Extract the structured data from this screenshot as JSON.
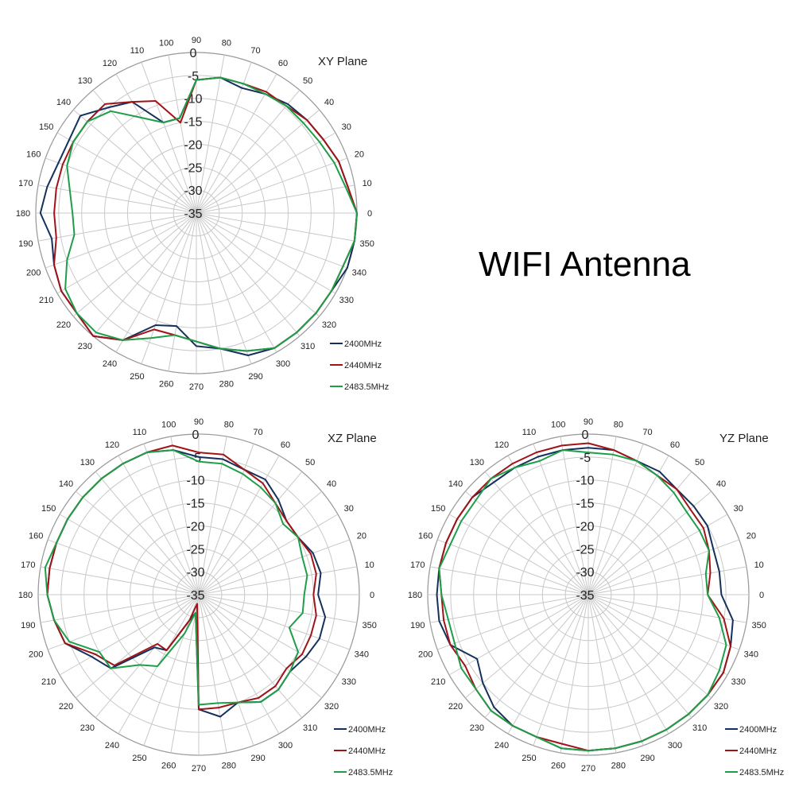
{
  "heading": "WIFI Antenna",
  "chart_data": [
    {
      "type": "polar-line",
      "title": "XY Plane",
      "r_ticks": [
        0,
        -5,
        -10,
        -15,
        -20,
        -25,
        -30,
        -35
      ],
      "r_range": [
        -35,
        0
      ],
      "angle_ticks": [
        0,
        10,
        20,
        30,
        40,
        50,
        60,
        70,
        80,
        90,
        100,
        110,
        120,
        130,
        140,
        150,
        160,
        170,
        180,
        190,
        200,
        210,
        220,
        230,
        240,
        250,
        260,
        270,
        280,
        290,
        300,
        310,
        320,
        330,
        340,
        350
      ],
      "legend": "bottom-right",
      "series": [
        {
          "name": "2400MHz",
          "color": "#14305c",
          "angles": [
            0,
            10,
            20,
            30,
            40,
            50,
            60,
            70,
            80,
            90,
            100,
            110,
            120,
            130,
            140,
            150,
            160,
            170,
            180,
            190,
            200,
            210,
            220,
            230,
            240,
            250,
            260,
            270,
            280,
            290,
            300,
            310,
            320,
            330,
            340,
            350
          ],
          "values": [
            0,
            -1.5,
            -2,
            -3,
            -3.5,
            -4,
            -5,
            -6,
            -5,
            -6,
            -14,
            -14,
            -7,
            -5,
            -2,
            -3,
            -3,
            -2,
            -1,
            -3,
            -2,
            -1,
            -1,
            0,
            -3,
            -9,
            -10,
            -6,
            -5,
            -2,
            -1,
            -1,
            -1,
            -1,
            0,
            0
          ]
        },
        {
          "name": "2440MHz",
          "color": "#a01418",
          "angles": [
            0,
            10,
            20,
            30,
            40,
            50,
            60,
            70,
            80,
            90,
            100,
            110,
            120,
            130,
            140,
            150,
            160,
            170,
            180,
            190,
            200,
            210,
            220,
            230,
            240,
            250,
            260,
            270,
            280,
            290,
            300,
            310,
            320,
            330,
            340,
            350
          ],
          "values": [
            0,
            -1.5,
            -2,
            -3,
            -3.5,
            -4.5,
            -4.5,
            -5,
            -5,
            -6,
            -15,
            -9,
            -7,
            -4,
            -4,
            -4,
            -4,
            -4,
            -4,
            -4,
            -2,
            -1,
            -1,
            0,
            -3,
            -8,
            -8,
            -7,
            -5,
            -3,
            -1,
            -1,
            -1,
            -1,
            -1,
            0
          ]
        },
        {
          "name": "2483.5MHz",
          "color": "#1e9e48",
          "angles": [
            0,
            10,
            20,
            30,
            40,
            50,
            60,
            70,
            80,
            90,
            100,
            110,
            120,
            130,
            140,
            150,
            160,
            170,
            180,
            190,
            200,
            210,
            220,
            230,
            240,
            250,
            260,
            270,
            280,
            290,
            300,
            310,
            320,
            330,
            340,
            350
          ],
          "values": [
            0,
            -2,
            -3,
            -4,
            -4.5,
            -4.5,
            -5,
            -5,
            -5,
            -6,
            -14,
            -14,
            -11,
            -6,
            -4,
            -4,
            -5,
            -7,
            -8,
            -8,
            -5,
            -2,
            -1,
            -1,
            -3,
            -6,
            -8,
            -7,
            -5,
            -3,
            -1,
            -1,
            -1,
            -1,
            -1,
            0
          ]
        }
      ]
    },
    {
      "type": "polar-line",
      "title": "XZ Plane",
      "r_ticks": [
        0,
        -5,
        -10,
        -15,
        -20,
        -25,
        -30,
        -35
      ],
      "r_range": [
        -35,
        0
      ],
      "angle_ticks": [
        0,
        10,
        20,
        30,
        40,
        50,
        60,
        70,
        80,
        90,
        100,
        110,
        120,
        130,
        140,
        150,
        160,
        170,
        180,
        190,
        200,
        210,
        220,
        230,
        240,
        250,
        260,
        270,
        280,
        290,
        300,
        310,
        320,
        330,
        340,
        350
      ],
      "legend": "bottom-right",
      "series": [
        {
          "name": "2400MHz",
          "color": "#14305c",
          "angles": [
            0,
            10,
            20,
            30,
            40,
            50,
            60,
            70,
            80,
            90,
            100,
            110,
            120,
            130,
            140,
            150,
            160,
            170,
            180,
            190,
            200,
            210,
            220,
            230,
            240,
            250,
            260,
            270,
            280,
            290,
            300,
            310,
            320,
            330,
            340,
            350
          ],
          "values": [
            -9,
            -8,
            -8.5,
            -10,
            -10,
            -8,
            -6,
            -6,
            -5,
            -5,
            -3,
            -2,
            -2,
            -2,
            -2,
            -2,
            -2,
            -2,
            -2,
            -3,
            -4,
            -8,
            -10,
            -20,
            -21,
            -29,
            -31,
            -10,
            -8,
            -10,
            -8,
            -8,
            -9,
            -8,
            -7,
            -7
          ]
        },
        {
          "name": "2440MHz",
          "color": "#a01418",
          "angles": [
            0,
            10,
            20,
            30,
            40,
            50,
            60,
            70,
            80,
            90,
            100,
            110,
            120,
            130,
            140,
            150,
            160,
            170,
            180,
            190,
            200,
            210,
            220,
            230,
            240,
            250,
            260,
            270,
            280,
            290,
            300,
            310,
            320,
            330,
            340,
            350
          ],
          "values": [
            -10,
            -9,
            -9,
            -10,
            -10,
            -9,
            -7,
            -6,
            -4,
            -4,
            -2,
            -2,
            -2,
            -2,
            -2,
            -2,
            -2,
            -2,
            -2,
            -3,
            -4,
            -9,
            -11,
            -21,
            -21,
            -29,
            -33,
            -10,
            -10,
            -10,
            -9,
            -9,
            -10,
            -9,
            -9,
            -9
          ]
        },
        {
          "name": "2483.5MHz",
          "color": "#1e9e48",
          "angles": [
            0,
            10,
            20,
            30,
            40,
            50,
            60,
            70,
            80,
            90,
            100,
            110,
            120,
            130,
            140,
            150,
            160,
            170,
            180,
            190,
            200,
            210,
            220,
            230,
            240,
            250,
            260,
            270,
            280,
            290,
            300,
            310,
            320,
            330,
            340,
            350
          ],
          "values": [
            -12,
            -11,
            -11,
            -10,
            -11,
            -9,
            -8,
            -7,
            -6,
            -6,
            -3,
            -2,
            -2,
            -2,
            -2,
            -2,
            -2,
            -1,
            -2,
            -3,
            -5,
            -10,
            -10,
            -15,
            -17,
            -26,
            -31,
            -11,
            -11,
            -10,
            -8,
            -8,
            -9,
            -10,
            -14,
            -12
          ]
        }
      ]
    },
    {
      "type": "polar-line",
      "title": "YZ Plane",
      "r_ticks": [
        0,
        -5,
        -10,
        -15,
        -20,
        -25,
        -30,
        -35
      ],
      "r_range": [
        -35,
        0
      ],
      "angle_ticks": [
        0,
        10,
        20,
        30,
        40,
        50,
        60,
        70,
        80,
        90,
        100,
        110,
        120,
        130,
        140,
        150,
        160,
        170,
        180,
        190,
        200,
        210,
        220,
        230,
        240,
        250,
        260,
        270,
        280,
        290,
        300,
        310,
        320,
        330,
        340,
        350
      ],
      "legend": "bottom-right",
      "series": [
        {
          "name": "2400MHz",
          "color": "#14305c",
          "angles": [
            0,
            10,
            20,
            30,
            40,
            50,
            60,
            70,
            80,
            90,
            100,
            110,
            120,
            130,
            140,
            150,
            160,
            170,
            180,
            190,
            200,
            210,
            220,
            230,
            240,
            250,
            260,
            270,
            280,
            290,
            300,
            310,
            320,
            330,
            340,
            350
          ],
          "values": [
            -6,
            -6,
            -6,
            -5,
            -5,
            -5,
            -4,
            -4,
            -3,
            -3,
            -3,
            -3,
            -3,
            -3,
            -2,
            -2,
            -2,
            -2,
            -2,
            -2,
            -3,
            -7,
            -5,
            -3,
            -2,
            -2,
            -1,
            -1,
            -1,
            -1,
            -1,
            -1,
            -1,
            -1,
            -2,
            -3
          ]
        },
        {
          "name": "2440MHz",
          "color": "#a01418",
          "angles": [
            0,
            10,
            20,
            30,
            40,
            50,
            60,
            70,
            80,
            90,
            100,
            110,
            120,
            130,
            140,
            150,
            160,
            170,
            180,
            190,
            200,
            210,
            220,
            230,
            240,
            250,
            260,
            270,
            280,
            290,
            300,
            310,
            320,
            330,
            340,
            350
          ],
          "values": [
            -9,
            -8,
            -7,
            -6,
            -6,
            -5,
            -5,
            -4,
            -3,
            -2,
            -2,
            -2,
            -2,
            -2,
            -2,
            -2,
            -2,
            -2,
            -3,
            -3,
            -3,
            -4,
            -3,
            -2,
            -2,
            -2,
            -2,
            -1,
            -1,
            -1,
            -1,
            -1,
            -1,
            -1,
            -2,
            -5
          ]
        },
        {
          "name": "2483.5MHz",
          "color": "#1e9e48",
          "angles": [
            0,
            10,
            20,
            30,
            40,
            50,
            60,
            70,
            80,
            90,
            100,
            110,
            120,
            130,
            140,
            150,
            160,
            170,
            180,
            190,
            200,
            210,
            220,
            230,
            240,
            250,
            260,
            270,
            280,
            290,
            300,
            310,
            320,
            330,
            340,
            350
          ],
          "values": [
            -9,
            -9,
            -7,
            -7,
            -7,
            -6,
            -5,
            -4,
            -4,
            -4,
            -3,
            -4,
            -3,
            -2,
            -3,
            -3,
            -3,
            -2,
            -3,
            -4,
            -4,
            -3,
            -3,
            -2,
            -2,
            -2,
            -1,
            -1,
            -1,
            -1,
            -1,
            -1,
            -1,
            -2,
            -3,
            -6
          ]
        }
      ]
    }
  ]
}
